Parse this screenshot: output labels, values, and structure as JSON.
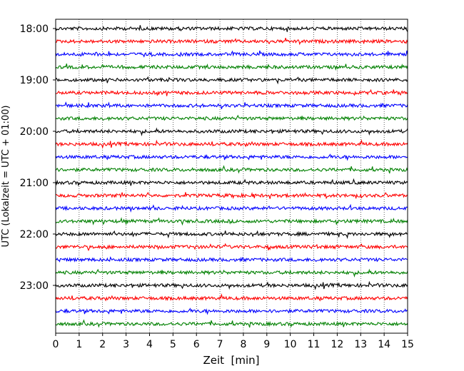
{
  "chart_data": {
    "type": "line",
    "title": "",
    "xlabel": "Zeit  [min]",
    "ylabel": "UTC (Lokalzeit = UTC + 01:00)",
    "xlim": [
      0,
      15
    ],
    "x_ticks": [
      "0",
      "1",
      "2",
      "3",
      "4",
      "5",
      "6",
      "7",
      "8",
      "9",
      "10",
      "11",
      "12",
      "13",
      "14",
      "15"
    ],
    "y_tick_labels": [
      "18:00",
      "19:00",
      "20:00",
      "21:00",
      "22:00",
      "23:00"
    ],
    "grid": "vertical dotted at each minute",
    "trace_colors": [
      "#000000",
      "#ff0000",
      "#0000ff",
      "#008000"
    ],
    "series": [
      {
        "start": "18:00",
        "color": "#000000"
      },
      {
        "start": "18:15",
        "color": "#ff0000"
      },
      {
        "start": "18:30",
        "color": "#0000ff"
      },
      {
        "start": "18:45",
        "color": "#008000"
      },
      {
        "start": "19:00",
        "color": "#000000"
      },
      {
        "start": "19:15",
        "color": "#ff0000"
      },
      {
        "start": "19:30",
        "color": "#0000ff"
      },
      {
        "start": "19:45",
        "color": "#008000"
      },
      {
        "start": "20:00",
        "color": "#000000"
      },
      {
        "start": "20:15",
        "color": "#ff0000"
      },
      {
        "start": "20:30",
        "color": "#0000ff"
      },
      {
        "start": "20:45",
        "color": "#008000"
      },
      {
        "start": "21:00",
        "color": "#000000"
      },
      {
        "start": "21:15",
        "color": "#ff0000"
      },
      {
        "start": "21:30",
        "color": "#0000ff"
      },
      {
        "start": "21:45",
        "color": "#008000"
      },
      {
        "start": "22:00",
        "color": "#000000"
      },
      {
        "start": "22:15",
        "color": "#ff0000"
      },
      {
        "start": "22:30",
        "color": "#0000ff"
      },
      {
        "start": "22:45",
        "color": "#008000"
      },
      {
        "start": "23:00",
        "color": "#000000"
      },
      {
        "start": "23:15",
        "color": "#ff0000"
      },
      {
        "start": "23:30",
        "color": "#0000ff"
      },
      {
        "start": "23:45",
        "color": "#008000"
      }
    ]
  }
}
